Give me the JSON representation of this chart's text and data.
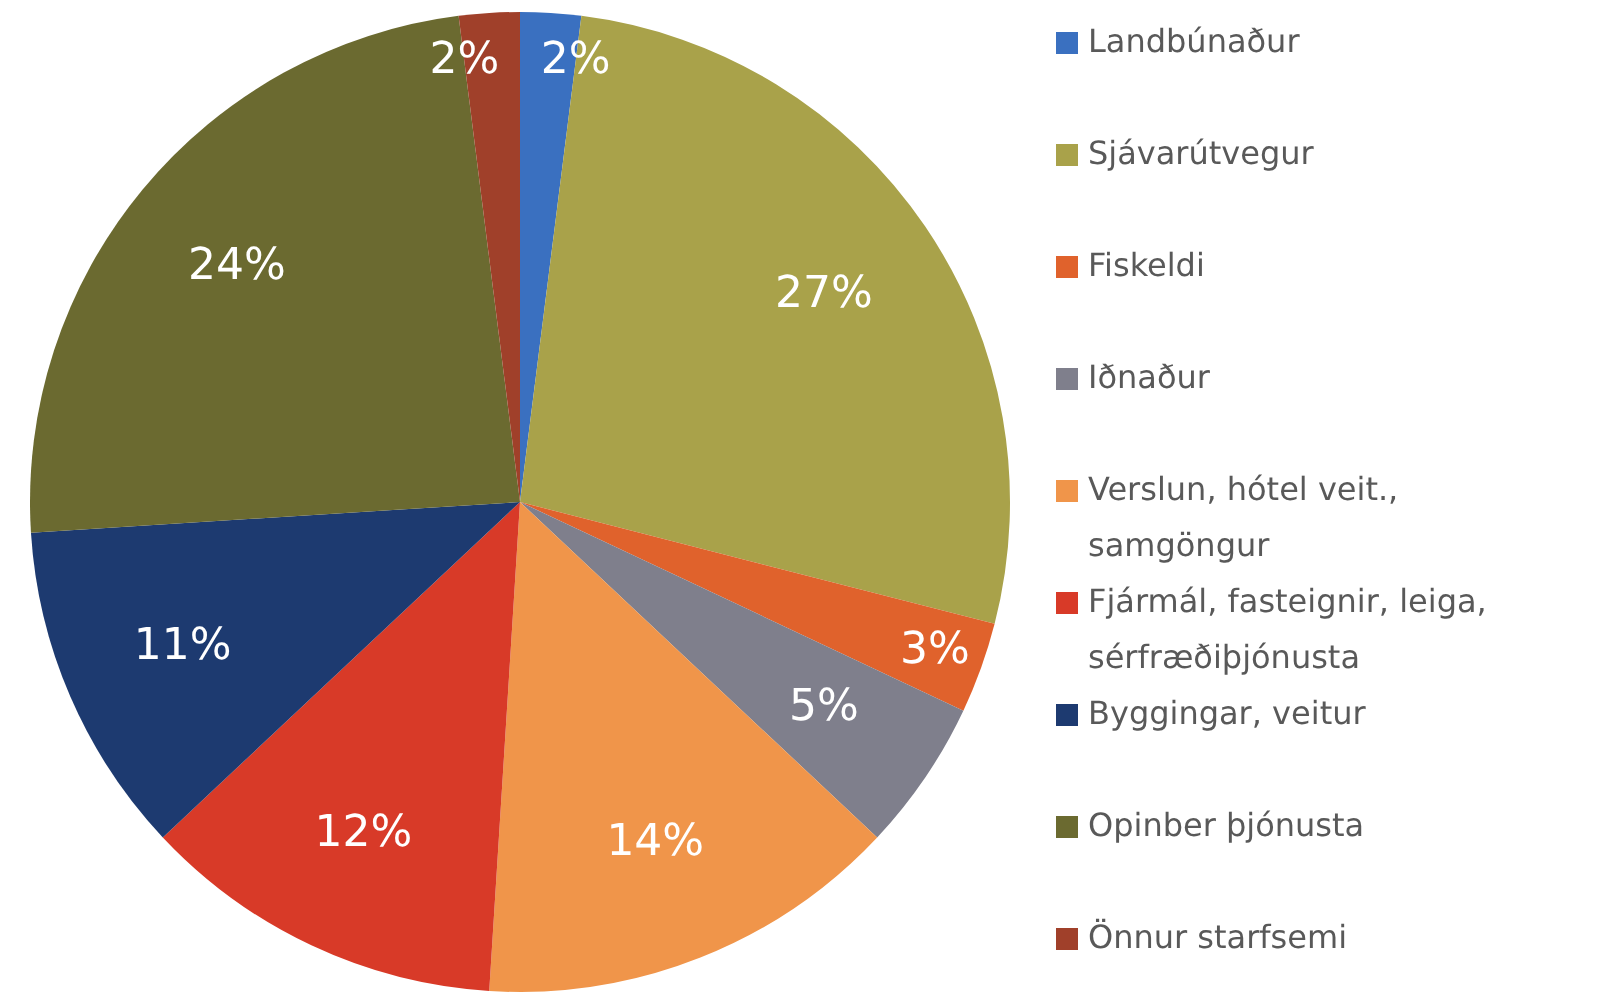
{
  "chart_data": {
    "type": "pie",
    "categories": [
      "Landbúnaður",
      "Sjávarútvegur",
      "Fiskeldi",
      "Iðnaður",
      "Verslun, hótel veit., samgöngur",
      "Fjármál, fasteignir, leiga, sérfræðiþjónusta",
      "Byggingar, veitur",
      "Opinber þjónusta",
      "Önnur starfsemi"
    ],
    "values": [
      2,
      27,
      3,
      5,
      14,
      12,
      11,
      24,
      2
    ],
    "colors": [
      "#3a70c0",
      "#a9a24a",
      "#e0622c",
      "#7f7f8c",
      "#f0954a",
      "#d83a28",
      "#1d3a70",
      "#6b6a30",
      "#a0402a"
    ],
    "value_labels": [
      "2%",
      "27%",
      "3%",
      "5%",
      "14%",
      "12%",
      "11%",
      "24%",
      "2%"
    ],
    "legend": "right"
  }
}
